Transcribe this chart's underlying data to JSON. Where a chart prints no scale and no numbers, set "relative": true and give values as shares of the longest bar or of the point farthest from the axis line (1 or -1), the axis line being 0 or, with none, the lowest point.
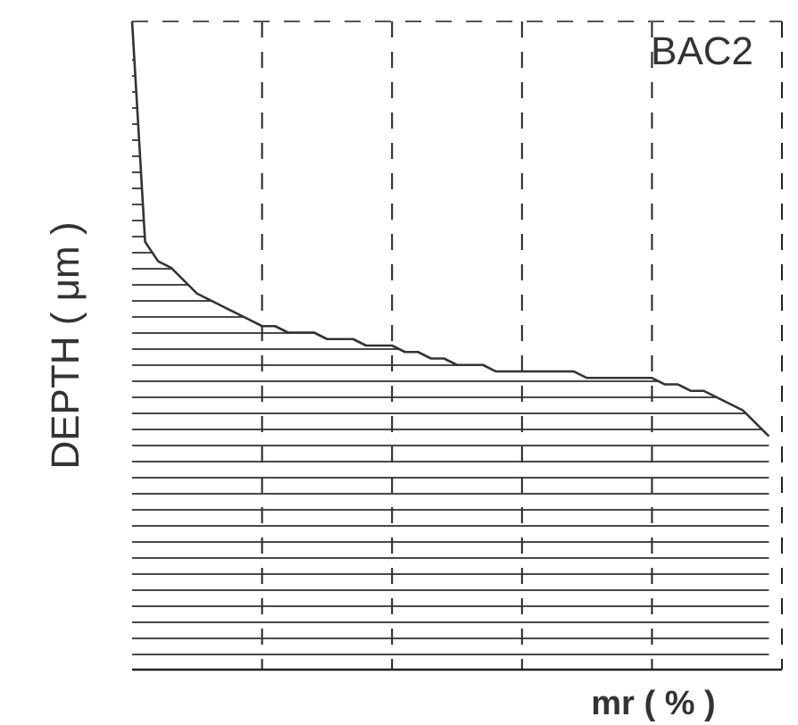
{
  "chart_data": {
    "type": "area",
    "title": "BAC2",
    "xlabel": "mr ( % )",
    "ylabel": "DEPTH ( μm )",
    "relative": true,
    "categories": [
      null,
      null,
      null,
      null,
      null,
      null,
      null,
      null,
      null,
      null,
      null,
      null,
      null,
      null,
      null,
      null,
      null,
      null,
      null,
      null,
      null,
      null,
      null,
      null,
      null,
      null,
      null,
      null,
      null,
      null,
      null,
      null,
      null,
      null,
      null,
      null,
      null,
      null,
      null,
      null,
      null,
      null,
      null,
      null,
      null,
      null,
      null,
      null,
      null,
      null
    ],
    "values": [
      1,
      0.66,
      0.63,
      0.62,
      0.6,
      0.58,
      0.57,
      0.56,
      0.55,
      0.54,
      0.53,
      0.53,
      0.52,
      0.52,
      0.52,
      0.51,
      0.51,
      0.51,
      0.5,
      0.5,
      0.5,
      0.49,
      0.49,
      0.48,
      0.48,
      0.47,
      0.47,
      0.47,
      0.46,
      0.46,
      0.46,
      0.46,
      0.46,
      0.46,
      0.46,
      0.45,
      0.45,
      0.45,
      0.45,
      0.45,
      0.45,
      0.44,
      0.44,
      0.43,
      0.43,
      0.42,
      0.41,
      0.4,
      0.38,
      0.36
    ],
    "color": "#333333",
    "grid": "x"
  }
}
